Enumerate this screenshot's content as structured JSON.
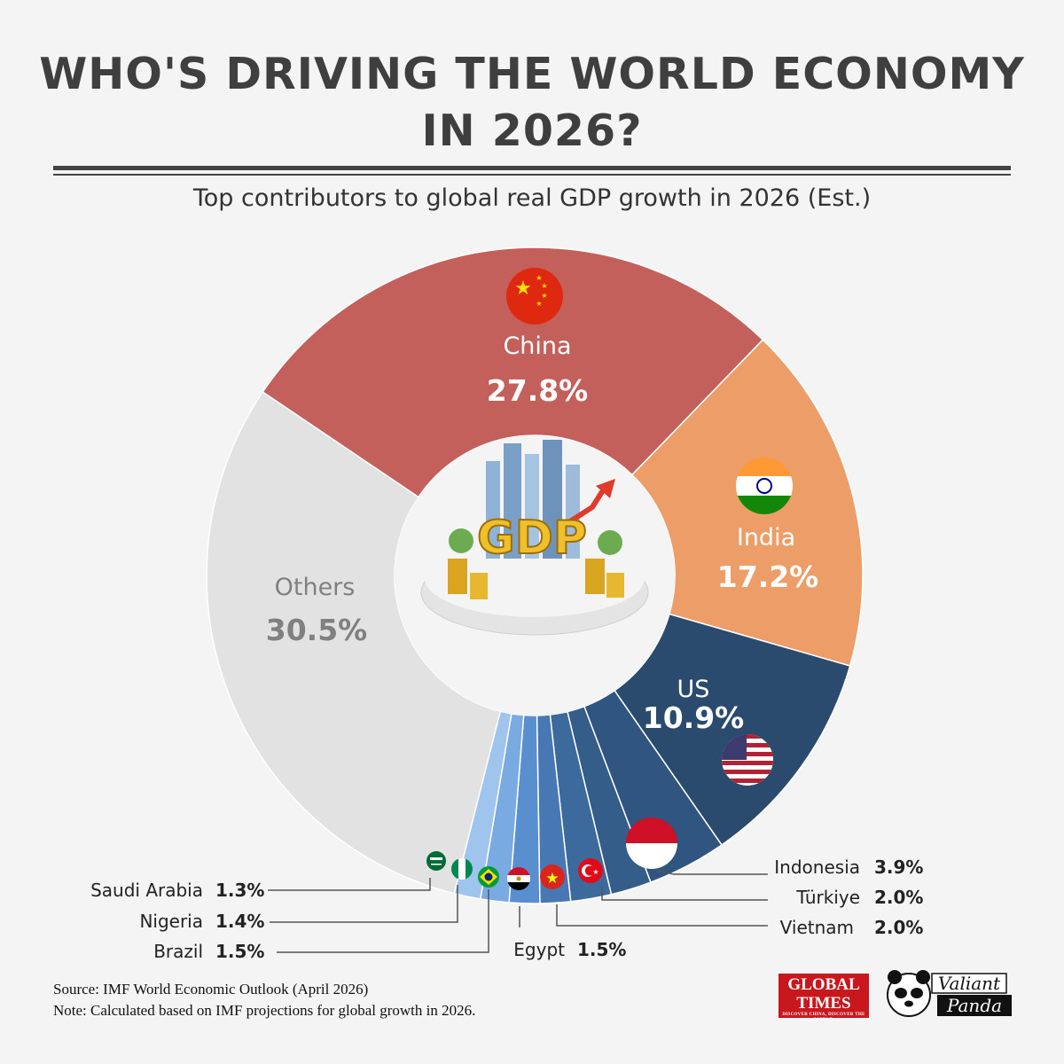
{
  "header": {
    "title_line1": "WHO'S DRIVING THE WORLD ECONOMY",
    "title_line2": "IN 2026?",
    "subtitle": "Top contributors to global real GDP growth in 2026 (Est.)"
  },
  "center_image": {
    "label": "GDP"
  },
  "chart_data": {
    "type": "pie",
    "donut": true,
    "title": "WHO'S DRIVING THE WORLD ECONOMY IN 2026?",
    "subtitle": "Top contributors to global real GDP growth in 2026 (Est.)",
    "unit": "%",
    "slices": [
      {
        "name": "China",
        "value": 27.8,
        "label": "27.8%",
        "color": "#c4605c",
        "flag": "china-flag-icon"
      },
      {
        "name": "India",
        "value": 17.2,
        "label": "17.2%",
        "color": "#ed9d68",
        "flag": "india-flag-icon"
      },
      {
        "name": "US",
        "value": 10.9,
        "label": "10.9%",
        "color": "#2b4b6e",
        "flag": "us-flag-icon"
      },
      {
        "name": "Indonesia",
        "value": 3.9,
        "label": "3.9%",
        "color": "#2f5580",
        "flag": "indonesia-flag-icon"
      },
      {
        "name": "Türkiye",
        "value": 2.0,
        "label": "2.0%",
        "color": "#355d8a",
        "flag": "turkiye-flag-icon"
      },
      {
        "name": "Vietnam",
        "value": 2.0,
        "label": "2.0%",
        "color": "#3d6a9d",
        "flag": "vietnam-flag-icon"
      },
      {
        "name": "Egypt",
        "value": 1.5,
        "label": "1.5%",
        "color": "#4778b3",
        "flag": "egypt-flag-icon"
      },
      {
        "name": "Brazil",
        "value": 1.5,
        "label": "1.5%",
        "color": "#5a8fcf",
        "flag": "brazil-flag-icon"
      },
      {
        "name": "Nigeria",
        "value": 1.4,
        "label": "1.4%",
        "color": "#7aaae2",
        "flag": "nigeria-flag-icon"
      },
      {
        "name": "Saudi Arabia",
        "value": 1.3,
        "label": "1.3%",
        "color": "#9fc4ee",
        "flag": "saudi-arabia-flag-icon"
      },
      {
        "name": "Others",
        "value": 30.5,
        "label": "30.5%",
        "color": "#e2e2e2"
      }
    ]
  },
  "footer": {
    "source": "Source: IMF World Economic Outlook (April 2026)",
    "note": "Note: Calculated based on IMF projections for global growth in 2026."
  },
  "logos": {
    "global_times_line1": "GLOBAL",
    "global_times_line2": "TIMES",
    "global_times_tagline": "DISCOVER CHINA, DISCOVER THE WORLD",
    "valiant_panda_line1": "Valiant",
    "valiant_panda_line2": "Panda"
  }
}
